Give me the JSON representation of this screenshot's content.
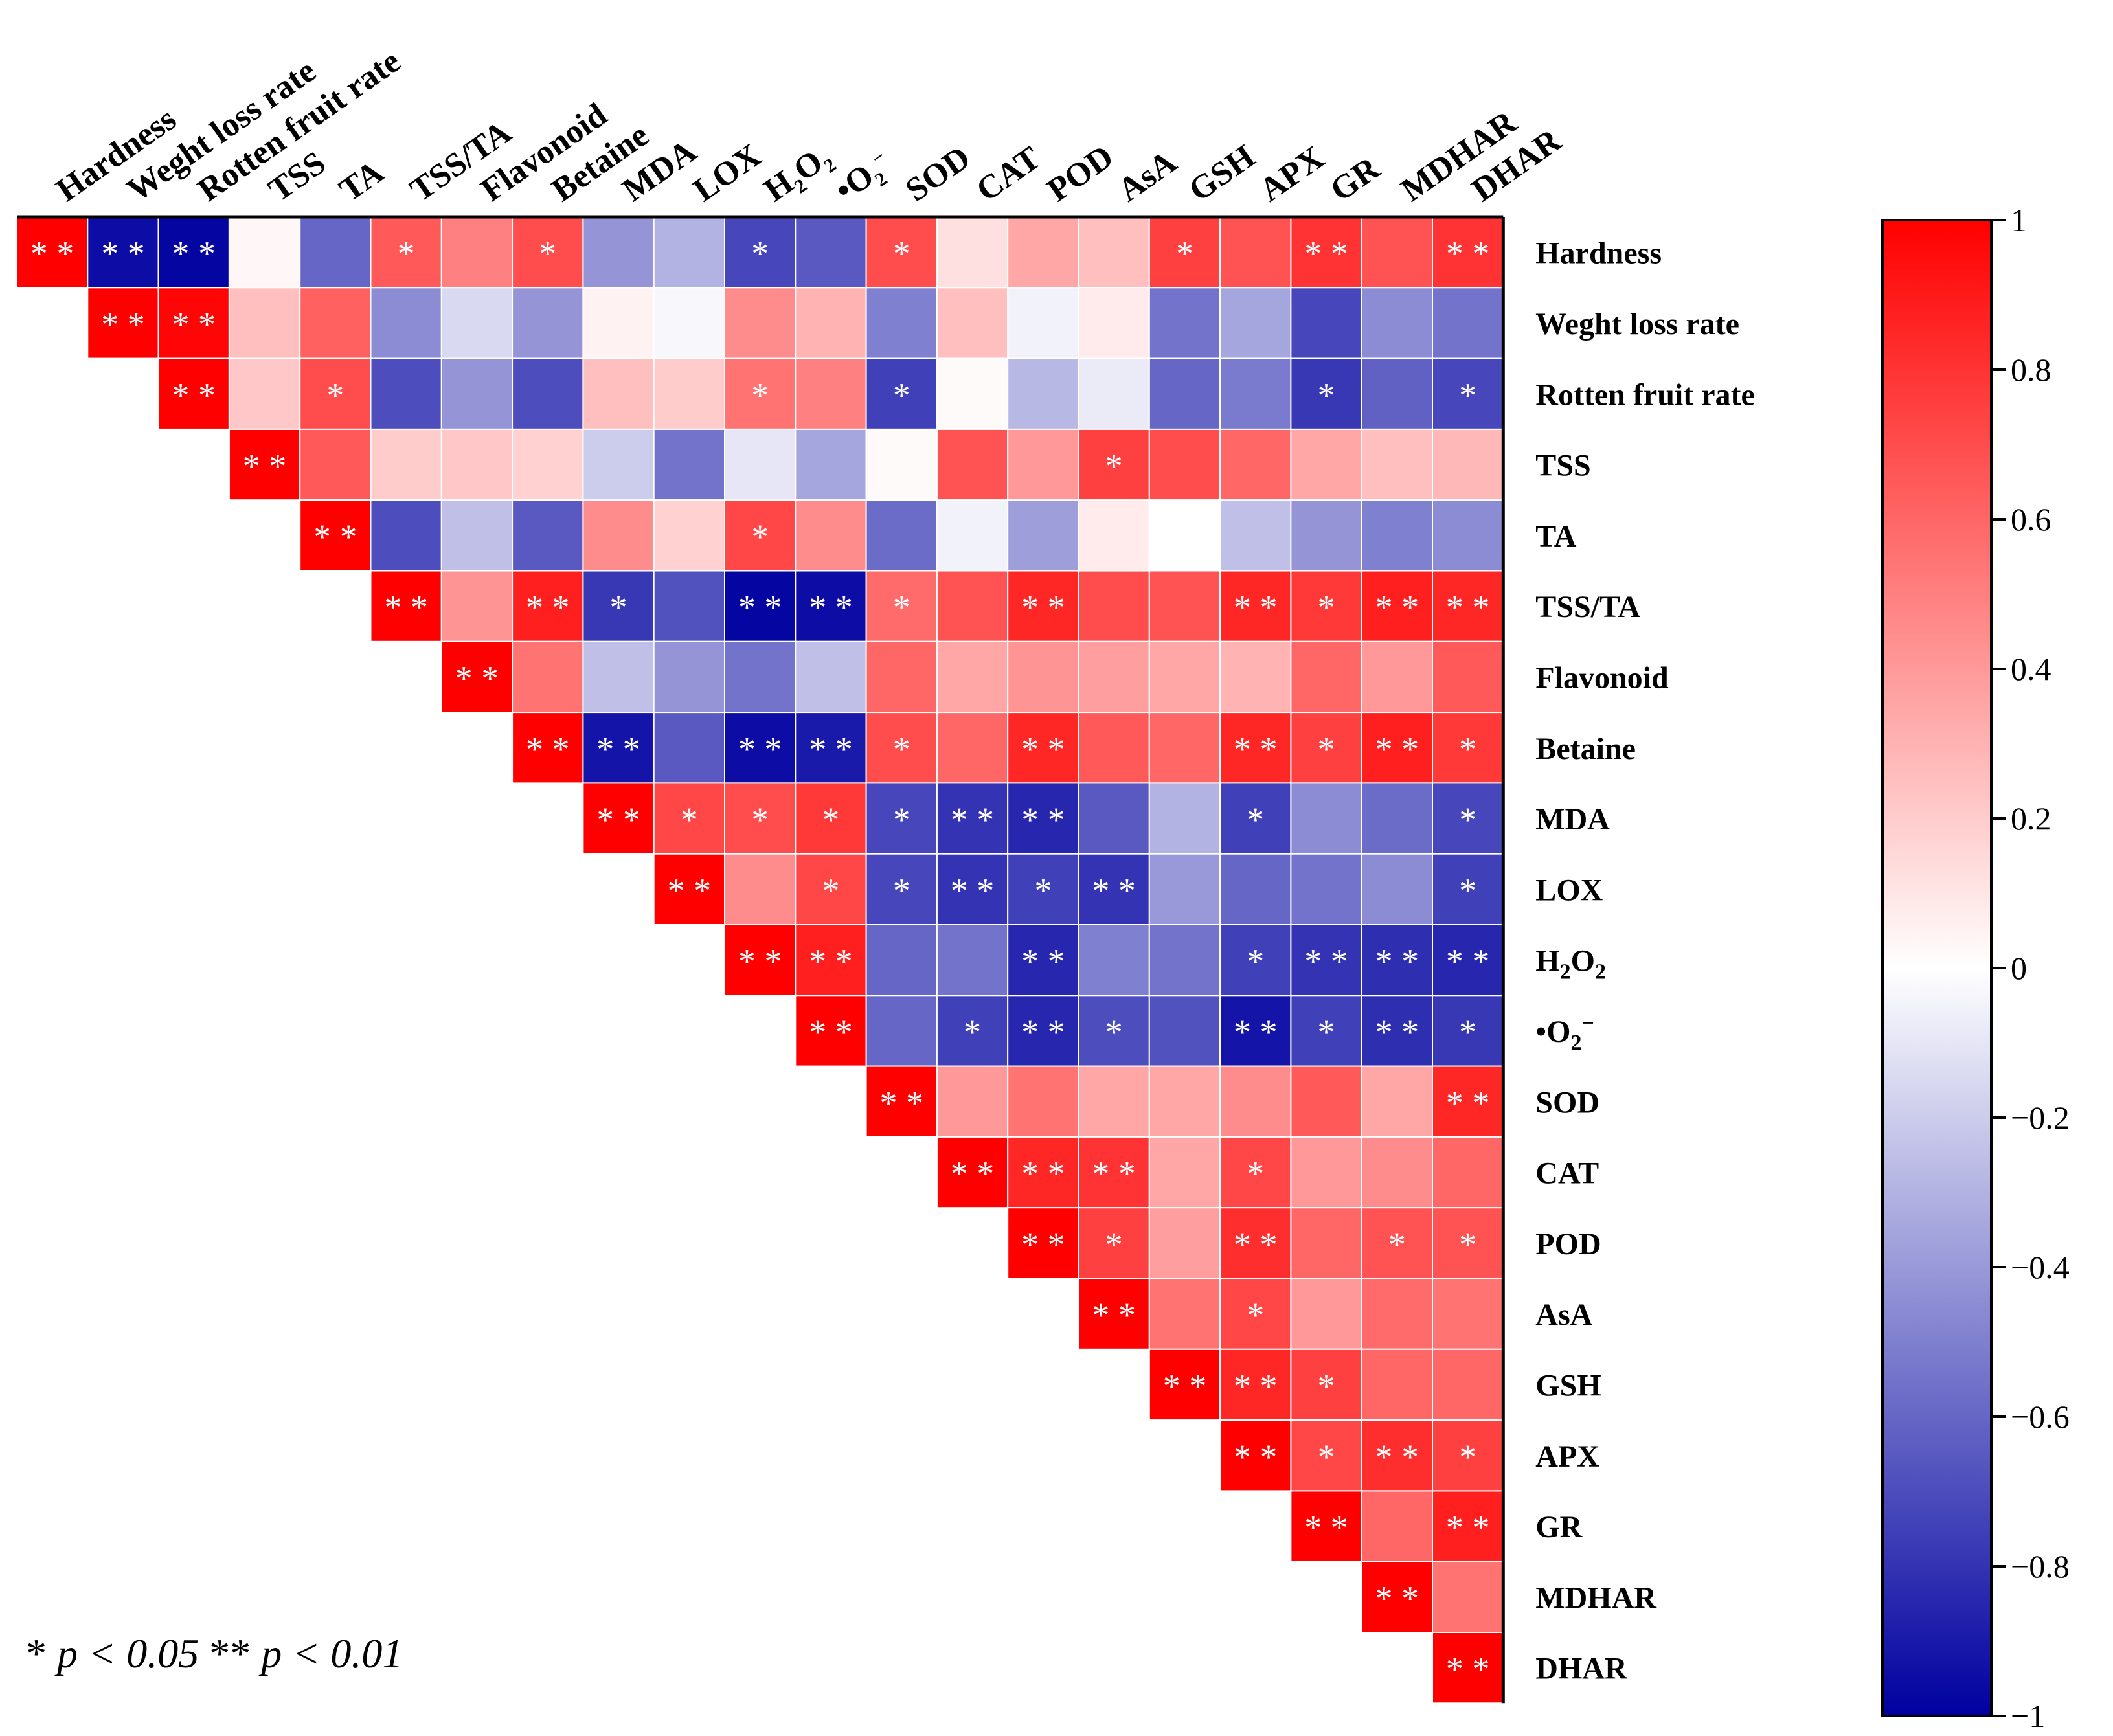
{
  "chart_data": {
    "type": "heatmap",
    "variables": [
      "Hardness",
      "Weght loss rate",
      "Rotten fruit rate",
      "TSS",
      "TA",
      "TSS/TA",
      "Flavonoid",
      "Betaine",
      "MDA",
      "LOX",
      "H2O2",
      "•O2−",
      "SOD",
      "CAT",
      "POD",
      "AsA",
      "GSH",
      "APX",
      "GR",
      "MDHAR",
      "DHAR"
    ],
    "layout": "upper-triangle",
    "values": [
      [
        1.0,
        -0.95,
        -0.98,
        0.03,
        -0.6,
        0.65,
        0.5,
        0.7,
        -0.42,
        -0.3,
        -0.72,
        -0.65,
        0.7,
        0.12,
        0.35,
        0.25,
        0.75,
        0.68,
        0.8,
        0.68,
        0.8
      ],
      [
        null,
        1.0,
        0.98,
        0.25,
        0.62,
        -0.45,
        -0.15,
        -0.42,
        0.05,
        -0.03,
        0.45,
        0.3,
        -0.5,
        0.25,
        -0.05,
        0.08,
        -0.55,
        -0.35,
        -0.72,
        -0.45,
        -0.55
      ],
      [
        null,
        null,
        1.0,
        0.22,
        0.7,
        -0.7,
        -0.42,
        -0.7,
        0.25,
        0.2,
        0.55,
        0.5,
        -0.75,
        0.02,
        -0.28,
        -0.08,
        -0.6,
        -0.52,
        -0.78,
        -0.62,
        -0.72
      ],
      [
        null,
        null,
        null,
        1.0,
        0.65,
        0.2,
        0.22,
        0.18,
        -0.2,
        -0.55,
        -0.1,
        -0.35,
        0.02,
        0.68,
        0.4,
        0.75,
        0.7,
        0.6,
        0.35,
        0.25,
        0.28
      ],
      [
        null,
        null,
        null,
        null,
        1.0,
        -0.7,
        -0.25,
        -0.65,
        0.45,
        0.18,
        0.72,
        0.45,
        -0.58,
        -0.05,
        -0.38,
        0.08,
        0.0,
        -0.25,
        -0.42,
        -0.5,
        -0.45
      ],
      [
        null,
        null,
        null,
        null,
        null,
        1.0,
        0.42,
        0.88,
        -0.78,
        -0.68,
        -0.98,
        -0.95,
        0.58,
        0.68,
        0.85,
        0.7,
        0.68,
        0.85,
        0.78,
        0.88,
        0.85
      ],
      [
        null,
        null,
        null,
        null,
        null,
        null,
        1.0,
        0.55,
        -0.25,
        -0.42,
        -0.55,
        -0.25,
        0.6,
        0.35,
        0.42,
        0.38,
        0.35,
        0.3,
        0.6,
        0.4,
        0.65
      ],
      [
        null,
        null,
        null,
        null,
        null,
        null,
        null,
        1.0,
        -0.92,
        -0.65,
        -0.95,
        -0.9,
        0.7,
        0.6,
        0.85,
        0.65,
        0.6,
        0.85,
        0.75,
        0.88,
        0.78
      ],
      [
        null,
        null,
        null,
        null,
        null,
        null,
        null,
        null,
        1.0,
        0.72,
        0.7,
        0.78,
        -0.72,
        -0.8,
        -0.85,
        -0.65,
        -0.3,
        -0.75,
        -0.45,
        -0.58,
        -0.72
      ],
      [
        null,
        null,
        null,
        null,
        null,
        null,
        null,
        null,
        null,
        1.0,
        0.45,
        0.72,
        -0.72,
        -0.8,
        -0.75,
        -0.8,
        -0.4,
        -0.6,
        -0.55,
        -0.45,
        -0.75
      ],
      [
        null,
        null,
        null,
        null,
        null,
        null,
        null,
        null,
        null,
        null,
        1.0,
        0.88,
        -0.6,
        -0.55,
        -0.85,
        -0.5,
        -0.55,
        -0.75,
        -0.8,
        -0.82,
        -0.85
      ],
      [
        null,
        null,
        null,
        null,
        null,
        null,
        null,
        null,
        null,
        null,
        null,
        1.0,
        -0.6,
        -0.75,
        -0.85,
        -0.7,
        -0.68,
        -0.92,
        -0.75,
        -0.82,
        -0.78
      ],
      [
        null,
        null,
        null,
        null,
        null,
        null,
        null,
        null,
        null,
        null,
        null,
        null,
        1.0,
        0.4,
        0.55,
        0.35,
        0.35,
        0.45,
        0.65,
        0.35,
        0.85
      ],
      [
        null,
        null,
        null,
        null,
        null,
        null,
        null,
        null,
        null,
        null,
        null,
        null,
        null,
        1.0,
        0.85,
        0.8,
        0.35,
        0.72,
        0.4,
        0.45,
        0.6
      ],
      [
        null,
        null,
        null,
        null,
        null,
        null,
        null,
        null,
        null,
        null,
        null,
        null,
        null,
        null,
        1.0,
        0.75,
        0.38,
        0.82,
        0.6,
        0.68,
        0.68
      ],
      [
        null,
        null,
        null,
        null,
        null,
        null,
        null,
        null,
        null,
        null,
        null,
        null,
        null,
        null,
        null,
        1.0,
        0.55,
        0.72,
        0.4,
        0.58,
        0.55
      ],
      [
        null,
        null,
        null,
        null,
        null,
        null,
        null,
        null,
        null,
        null,
        null,
        null,
        null,
        null,
        null,
        null,
        1.0,
        0.85,
        0.75,
        0.6,
        0.6
      ],
      [
        null,
        null,
        null,
        null,
        null,
        null,
        null,
        null,
        null,
        null,
        null,
        null,
        null,
        null,
        null,
        null,
        null,
        1.0,
        0.72,
        0.82,
        0.75
      ],
      [
        null,
        null,
        null,
        null,
        null,
        null,
        null,
        null,
        null,
        null,
        null,
        null,
        null,
        null,
        null,
        null,
        null,
        null,
        1.0,
        0.6,
        0.88
      ],
      [
        null,
        null,
        null,
        null,
        null,
        null,
        null,
        null,
        null,
        null,
        null,
        null,
        null,
        null,
        null,
        null,
        null,
        null,
        null,
        1.0,
        0.55
      ],
      [
        null,
        null,
        null,
        null,
        null,
        null,
        null,
        null,
        null,
        null,
        null,
        null,
        null,
        null,
        null,
        null,
        null,
        null,
        null,
        null,
        1.0
      ]
    ],
    "significance": [
      [
        "**",
        "**",
        "**",
        "",
        "",
        "*",
        "",
        "*",
        "",
        "",
        "*",
        "",
        "*",
        "",
        "",
        "",
        "*",
        "",
        "**",
        "",
        "**"
      ],
      [
        "",
        "**",
        "**",
        "",
        "",
        "",
        "",
        "",
        "",
        "",
        "",
        "",
        "",
        "",
        "",
        "",
        "",
        "",
        "",
        "",
        ""
      ],
      [
        "",
        "",
        "**",
        "",
        "*",
        "",
        "",
        "",
        "",
        "",
        "*",
        "",
        "*",
        "",
        "",
        "",
        "",
        "",
        "*",
        "",
        "*"
      ],
      [
        "",
        "",
        "",
        "**",
        "",
        "",
        "",
        "",
        "",
        "",
        "",
        "",
        "",
        "",
        "",
        "*",
        "",
        "",
        "",
        "",
        ""
      ],
      [
        "",
        "",
        "",
        "",
        "**",
        "",
        "",
        "",
        "",
        "",
        "*",
        "",
        "",
        "",
        "",
        "",
        "",
        "",
        "",
        "",
        ""
      ],
      [
        "",
        "",
        "",
        "",
        "",
        "**",
        "",
        "**",
        "*",
        "",
        "**",
        "**",
        "*",
        "",
        "**",
        "",
        "",
        "**",
        "*",
        "**",
        "**"
      ],
      [
        "",
        "",
        "",
        "",
        "",
        "",
        "**",
        "",
        "",
        "",
        "",
        "",
        "",
        "",
        "",
        "",
        "",
        "",
        "",
        "",
        ""
      ],
      [
        "",
        "",
        "",
        "",
        "",
        "",
        "",
        "**",
        "**",
        "",
        "**",
        "**",
        "*",
        "",
        "**",
        "",
        "",
        "**",
        "*",
        "**",
        "*"
      ],
      [
        "",
        "",
        "",
        "",
        "",
        "",
        "",
        "",
        "**",
        "*",
        "*",
        "*",
        "*",
        "**",
        "**",
        "",
        "",
        "*",
        "",
        "",
        "*"
      ],
      [
        "",
        "",
        "",
        "",
        "",
        "",
        "",
        "",
        "",
        "**",
        "",
        "*",
        "*",
        "**",
        "*",
        "**",
        "",
        "",
        "",
        "",
        "*"
      ],
      [
        "",
        "",
        "",
        "",
        "",
        "",
        "",
        "",
        "",
        "",
        "**",
        "**",
        "",
        "",
        "**",
        "",
        "",
        "*",
        "**",
        "**",
        "**"
      ],
      [
        "",
        "",
        "",
        "",
        "",
        "",
        "",
        "",
        "",
        "",
        "",
        "**",
        "",
        "*",
        "**",
        "*",
        "",
        "**",
        "*",
        "**",
        "*"
      ],
      [
        "",
        "",
        "",
        "",
        "",
        "",
        "",
        "",
        "",
        "",
        "",
        "",
        "**",
        "",
        "",
        "",
        "",
        "",
        "",
        "",
        "**"
      ],
      [
        "",
        "",
        "",
        "",
        "",
        "",
        "",
        "",
        "",
        "",
        "",
        "",
        "",
        "**",
        "**",
        "**",
        "",
        "*",
        "",
        "",
        ""
      ],
      [
        "",
        "",
        "",
        "",
        "",
        "",
        "",
        "",
        "",
        "",
        "",
        "",
        "",
        "",
        "**",
        "*",
        "",
        "**",
        "",
        "*",
        "*"
      ],
      [
        "",
        "",
        "",
        "",
        "",
        "",
        "",
        "",
        "",
        "",
        "",
        "",
        "",
        "",
        "",
        "**",
        "",
        "*",
        "",
        "",
        ""
      ],
      [
        "",
        "",
        "",
        "",
        "",
        "",
        "",
        "",
        "",
        "",
        "",
        "",
        "",
        "",
        "",
        "",
        "**",
        "**",
        "*",
        "",
        ""
      ],
      [
        "",
        "",
        "",
        "",
        "",
        "",
        "",
        "",
        "",
        "",
        "",
        "",
        "",
        "",
        "",
        "",
        "",
        "**",
        "*",
        "**",
        "*"
      ],
      [
        "",
        "",
        "",
        "",
        "",
        "",
        "",
        "",
        "",
        "",
        "",
        "",
        "",
        "",
        "",
        "",
        "",
        "",
        "**",
        "",
        "**"
      ],
      [
        "",
        "",
        "",
        "",
        "",
        "",
        "",
        "",
        "",
        "",
        "",
        "",
        "",
        "",
        "",
        "",
        "",
        "",
        "",
        "**",
        ""
      ],
      [
        "",
        "",
        "",
        "",
        "",
        "",
        "",
        "",
        "",
        "",
        "",
        "",
        "",
        "",
        "",
        "",
        "",
        "",
        "",
        "",
        "**"
      ]
    ],
    "colorbar": {
      "min": -1,
      "max": 1,
      "ticks": [
        1,
        0.8,
        0.6,
        0.4,
        0.2,
        0,
        -0.2,
        -0.4,
        -0.6,
        -0.8,
        -1
      ],
      "tick_labels": [
        "1",
        "0.8",
        "0.6",
        "0.4",
        "0.2",
        "0",
        "−0.2",
        "−0.4",
        "−0.6",
        "−0.8",
        "−1"
      ],
      "colors": {
        "low": "#0000a0",
        "mid": "#ffffff",
        "high": "#ff0000"
      }
    },
    "column_label_position": "top, rotated",
    "row_label_position": "right",
    "colorbar_position": "right",
    "significance_legend": {
      "single": "*",
      "single_text": "p < 0.05",
      "double": "**",
      "double_text": "p < 0.01"
    }
  }
}
